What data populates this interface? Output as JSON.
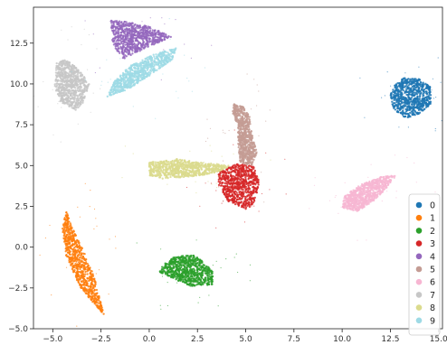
{
  "chart_data": {
    "type": "scatter",
    "title": "",
    "xlabel": "",
    "ylabel": "",
    "xlim": [
      -6.0,
      15.2
    ],
    "ylim": [
      -5.0,
      14.7
    ],
    "x_ticks": [
      -5.0,
      -2.5,
      0.0,
      2.5,
      5.0,
      7.5,
      10.0,
      12.5,
      15.0
    ],
    "x_tick_labels": [
      "−5.0",
      "−2.5",
      "0.0",
      "2.5",
      "5.0",
      "7.5",
      "10.0",
      "12.5",
      "15.0"
    ],
    "y_ticks": [
      -5.0,
      -2.5,
      0.0,
      2.5,
      5.0,
      7.5,
      10.0,
      12.5
    ],
    "y_tick_labels": [
      "−5.0",
      "−2.5",
      "0.0",
      "2.5",
      "5.0",
      "7.5",
      "10.0",
      "12.5"
    ],
    "grid": false,
    "legend_position": "lower-right",
    "series": [
      {
        "name": "0",
        "color": "#1f77b4",
        "center": [
          13.6,
          9.3
        ],
        "polygon": [
          [
            12.7,
            9.9
          ],
          [
            13.2,
            10.4
          ],
          [
            14.0,
            10.3
          ],
          [
            14.6,
            9.8
          ],
          [
            14.6,
            8.8
          ],
          [
            14.1,
            8.2
          ],
          [
            13.3,
            7.9
          ],
          [
            12.6,
            8.5
          ],
          [
            12.5,
            9.3
          ]
        ]
      },
      {
        "name": "1",
        "color": "#ff7f0e",
        "center": [
          -3.5,
          -1.0
        ],
        "polygon": [
          [
            -4.3,
            2.3
          ],
          [
            -4.1,
            1.5
          ],
          [
            -3.5,
            0.0
          ],
          [
            -2.9,
            -1.6
          ],
          [
            -2.6,
            -3.0
          ],
          [
            -2.3,
            -4.2
          ],
          [
            -2.8,
            -3.6
          ],
          [
            -3.6,
            -2.4
          ],
          [
            -4.3,
            -0.6
          ],
          [
            -4.5,
            1.1
          ]
        ]
      },
      {
        "name": "2",
        "color": "#2ca02c",
        "center": [
          2.0,
          -1.4
        ],
        "polygon": [
          [
            0.7,
            -1.1
          ],
          [
            1.3,
            -0.6
          ],
          [
            2.2,
            -0.4
          ],
          [
            2.8,
            -0.9
          ],
          [
            3.3,
            -1.5
          ],
          [
            3.3,
            -2.3
          ],
          [
            2.2,
            -2.4
          ],
          [
            1.2,
            -1.9
          ],
          [
            0.5,
            -1.5
          ]
        ]
      },
      {
        "name": "3",
        "color": "#d62728",
        "center": [
          4.6,
          3.7
        ],
        "polygon": [
          [
            3.6,
            4.6
          ],
          [
            4.5,
            5.1
          ],
          [
            5.4,
            5.0
          ],
          [
            5.7,
            4.0
          ],
          [
            5.5,
            2.8
          ],
          [
            5.1,
            2.3
          ],
          [
            4.1,
            2.8
          ],
          [
            3.6,
            3.8
          ]
        ]
      },
      {
        "name": "4",
        "color": "#9467bd",
        "center": [
          -0.4,
          12.9
        ],
        "polygon": [
          [
            -2.0,
            13.9
          ],
          [
            -1.1,
            13.8
          ],
          [
            0.0,
            13.5
          ],
          [
            1.2,
            12.9
          ],
          [
            0.6,
            12.6
          ],
          [
            -0.7,
            11.9
          ],
          [
            -1.4,
            11.5
          ],
          [
            -1.9,
            12.5
          ]
        ]
      },
      {
        "name": "5",
        "color": "#c49c94",
        "center": [
          4.8,
          6.5
        ],
        "polygon": [
          [
            4.4,
            8.8
          ],
          [
            4.9,
            8.6
          ],
          [
            5.2,
            8.0
          ],
          [
            5.3,
            7.0
          ],
          [
            5.6,
            5.8
          ],
          [
            5.3,
            5.0
          ],
          [
            4.7,
            5.2
          ],
          [
            4.6,
            6.4
          ],
          [
            4.6,
            7.4
          ],
          [
            4.3,
            8.3
          ]
        ]
      },
      {
        "name": "6",
        "color": "#f7b6d2",
        "center": [
          11.3,
          3.3
        ],
        "polygon": [
          [
            10.0,
            2.4
          ],
          [
            10.8,
            2.2
          ],
          [
            11.6,
            2.8
          ],
          [
            12.3,
            3.6
          ],
          [
            12.8,
            4.4
          ],
          [
            12.0,
            4.3
          ],
          [
            10.9,
            3.8
          ],
          [
            10.1,
            3.1
          ]
        ]
      },
      {
        "name": "7",
        "color": "#c7c7c7",
        "center": [
          -4.0,
          9.9
        ],
        "polygon": [
          [
            -4.8,
            11.3
          ],
          [
            -4.3,
            11.5
          ],
          [
            -3.6,
            10.8
          ],
          [
            -3.1,
            10.0
          ],
          [
            -3.4,
            8.9
          ],
          [
            -3.8,
            8.4
          ],
          [
            -4.6,
            8.9
          ],
          [
            -4.9,
            9.8
          ]
        ]
      },
      {
        "name": "8",
        "color": "#dbdb8d",
        "center": [
          1.8,
          4.8
        ],
        "polygon": [
          [
            0.0,
            4.4
          ],
          [
            0.0,
            5.2
          ],
          [
            1.5,
            5.4
          ],
          [
            2.5,
            5.2
          ],
          [
            4.3,
            5.0
          ],
          [
            3.3,
            4.5
          ],
          [
            2.0,
            4.3
          ],
          [
            0.7,
            4.2
          ]
        ]
      },
      {
        "name": "9",
        "color": "#9edae5",
        "center": [
          -0.4,
          10.5
        ],
        "polygon": [
          [
            -2.2,
            9.2
          ],
          [
            -1.8,
            10.2
          ],
          [
            -1.0,
            11.1
          ],
          [
            0.2,
            11.8
          ],
          [
            1.4,
            12.2
          ],
          [
            1.2,
            11.5
          ],
          [
            0.0,
            10.5
          ],
          [
            -1.2,
            9.6
          ]
        ]
      }
    ]
  }
}
